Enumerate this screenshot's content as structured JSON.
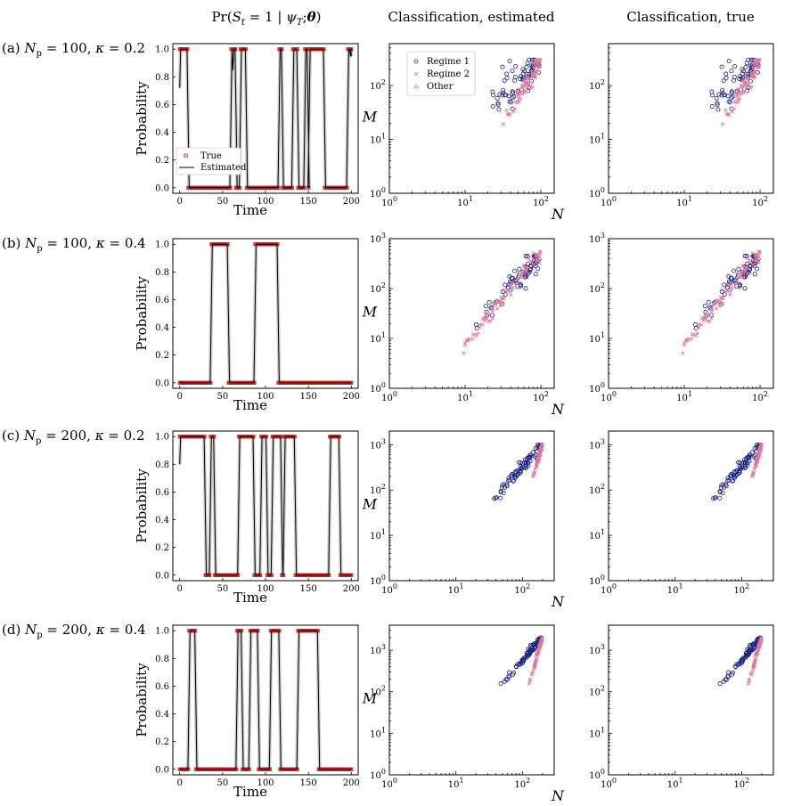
{
  "column_titles": {
    "prob": "Pr(S_t = 1 | ψ_T; θ)",
    "est": "Classification, estimated",
    "true": "Classification, true"
  },
  "row_labels": [
    "(a) N_p = 100, κ = 0.2",
    "(b) N_p = 100, κ = 0.4",
    "(c) N_p = 200, κ = 0.2",
    "(d) N_p = 200, κ = 0.4"
  ],
  "colors": {
    "regime1": "#1a237e",
    "regime2": "#e0789b",
    "other": "#9e9e9e",
    "true_marker": "#c62828",
    "estimated_line": "#000000",
    "band": "#cfcfcf"
  },
  "chart_data": [
    {
      "panel": "a-probability",
      "type": "line",
      "row": 0,
      "xlabel": "Time",
      "ylabel": "Probability",
      "xlim": [
        -8,
        208
      ],
      "ylim": [
        -0.04,
        1.04
      ],
      "xticks": [
        "0",
        "50",
        "100",
        "150",
        "200"
      ],
      "yticks": [
        "0.0",
        "0.2",
        "0.4",
        "0.6",
        "0.8",
        "1.0"
      ],
      "legend": [
        "True",
        "Estimated"
      ],
      "series": [
        {
          "name": "True",
          "intervals": [
            [
              0,
              9
            ],
            [
              60,
              65
            ],
            [
              71,
              77
            ],
            [
              116,
              119
            ],
            [
              132,
              137
            ],
            [
              146,
              149
            ],
            [
              151,
              168
            ],
            [
              196,
              200
            ]
          ],
          "outliers": [
            {
              "x": 53,
              "y": 0
            },
            {
              "x": 66,
              "y": 0
            }
          ]
        },
        {
          "name": "Estimated",
          "intervals": [
            [
              0,
              9
            ],
            [
              60,
              65
            ],
            [
              71,
              77
            ],
            [
              116,
              119
            ],
            [
              132,
              137
            ],
            [
              146,
              149
            ],
            [
              151,
              168
            ],
            [
              196,
              200
            ]
          ],
          "start": 0.72,
          "dips": [
            {
              "x": 62,
              "y": 0.85
            },
            {
              "x": 199,
              "y": 0.95
            }
          ]
        }
      ]
    },
    {
      "panel": "a-estimated",
      "type": "scatter",
      "row": 0,
      "xlabel": "N",
      "ylabel": "M",
      "log": true,
      "xlim": [
        1,
        150
      ],
      "ylim": [
        1,
        600
      ],
      "xticks": [
        "10^0",
        "10^1",
        "10^2"
      ],
      "yticks": [
        "10^0",
        "10^1",
        "10^2"
      ],
      "legend": [
        "Regime 1",
        "Regime 2",
        "Other"
      ],
      "series": [
        {
          "name": "Regime 1",
          "x_range": [
            20,
            95
          ],
          "y_range": [
            13,
            300
          ],
          "slope": 1.35,
          "scatter": 0.18,
          "count": 70
        },
        {
          "name": "Regime 2",
          "x_range": [
            30,
            100
          ],
          "y_range": [
            14,
            300
          ],
          "slope": 2.3,
          "scatter": 0.08,
          "count": 70
        }
      ]
    },
    {
      "panel": "a-true",
      "type": "scatter",
      "row": 0,
      "xlabel": "",
      "ylabel": "",
      "log": true,
      "xlim": [
        1,
        150
      ],
      "ylim": [
        1,
        600
      ],
      "xticks": [
        "10^0",
        "10^1",
        "10^2"
      ],
      "yticks": [
        "10^0",
        "10^1",
        "10^2"
      ],
      "series": [
        {
          "name": "Regime 1",
          "x_range": [
            20,
            95
          ],
          "y_range": [
            13,
            300
          ],
          "slope": 1.35,
          "scatter": 0.18,
          "count": 70
        },
        {
          "name": "Regime 2",
          "x_range": [
            30,
            100
          ],
          "y_range": [
            14,
            300
          ],
          "slope": 2.3,
          "scatter": 0.08,
          "count": 70
        }
      ]
    },
    {
      "panel": "b-probability",
      "type": "line",
      "row": 1,
      "xlabel": "Time",
      "ylabel": "Probability",
      "xlim": [
        -8,
        208
      ],
      "ylim": [
        -0.04,
        1.04
      ],
      "xticks": [
        "0",
        "50",
        "100",
        "150",
        "200"
      ],
      "yticks": [
        "0.0",
        "0.2",
        "0.4",
        "0.6",
        "0.8",
        "1.0"
      ],
      "series": [
        {
          "name": "True",
          "intervals": [
            [
              37,
              56
            ],
            [
              88,
              114
            ]
          ],
          "outliers": []
        },
        {
          "name": "Estimated",
          "intervals": [
            [
              37,
              56
            ],
            [
              88,
              114
            ]
          ],
          "start": 0.0,
          "dips": []
        }
      ]
    },
    {
      "panel": "b-estimated",
      "type": "scatter",
      "row": 1,
      "xlabel": "N",
      "ylabel": "M",
      "log": true,
      "xlim": [
        1,
        150
      ],
      "ylim": [
        1,
        1000
      ],
      "xticks": [
        "10^0",
        "10^1",
        "10^2"
      ],
      "yticks": [
        "10^0",
        "10^1",
        "10^2",
        "10^3"
      ],
      "series": [
        {
          "name": "Regime 1",
          "x_range": [
            13,
            95
          ],
          "y_range": [
            14,
            450
          ],
          "slope": 1.6,
          "scatter": 0.15,
          "count": 70
        },
        {
          "name": "Regime 2",
          "x_range": [
            8,
            100
          ],
          "y_range": [
            4,
            550
          ],
          "slope": 1.9,
          "scatter": 0.07,
          "count": 80
        }
      ]
    },
    {
      "panel": "b-true",
      "type": "scatter",
      "row": 1,
      "xlabel": "",
      "ylabel": "",
      "log": true,
      "xlim": [
        1,
        150
      ],
      "ylim": [
        1,
        1000
      ],
      "xticks": [
        "10^0",
        "10^1",
        "10^2"
      ],
      "yticks": [
        "10^0",
        "10^1",
        "10^2",
        "10^3"
      ],
      "series": [
        {
          "name": "Regime 1",
          "x_range": [
            13,
            95
          ],
          "y_range": [
            14,
            450
          ],
          "slope": 1.6,
          "scatter": 0.15,
          "count": 70
        },
        {
          "name": "Regime 2",
          "x_range": [
            8,
            100
          ],
          "y_range": [
            4,
            550
          ],
          "slope": 1.9,
          "scatter": 0.07,
          "count": 80
        }
      ]
    },
    {
      "panel": "c-probability",
      "type": "line",
      "row": 2,
      "xlabel": "Time",
      "ylabel": "Probability",
      "xlim": [
        -8,
        208
      ],
      "ylim": [
        -0.04,
        1.04
      ],
      "xticks": [
        "0",
        "50",
        "100",
        "150",
        "200"
      ],
      "yticks": [
        "0.0",
        "0.2",
        "0.4",
        "0.6",
        "0.8",
        "1.0"
      ],
      "series": [
        {
          "name": "True",
          "intervals": [
            [
              0,
              29
            ],
            [
              36,
              40
            ],
            [
              69,
              86
            ],
            [
              95,
              101
            ],
            [
              108,
              118
            ],
            [
              122,
              134
            ],
            [
              175,
              186
            ]
          ],
          "outliers": []
        },
        {
          "name": "Estimated",
          "intervals": [
            [
              0,
              29
            ],
            [
              36,
              40
            ],
            [
              69,
              86
            ],
            [
              95,
              101
            ],
            [
              108,
              118
            ],
            [
              122,
              134
            ],
            [
              175,
              186
            ]
          ],
          "start": 0.8,
          "dips": [
            {
              "x": 120,
              "y": 0.46
            }
          ]
        }
      ]
    },
    {
      "panel": "c-estimated",
      "type": "scatter",
      "row": 2,
      "xlabel": "N",
      "ylabel": "M",
      "log": true,
      "xlim": [
        1,
        300
      ],
      "ylim": [
        1,
        2000
      ],
      "xticks": [
        "10^0",
        "10^1",
        "10^2"
      ],
      "yticks": [
        "10^0",
        "10^1",
        "10^2",
        "10^3"
      ],
      "series": [
        {
          "name": "Regime 1",
          "x_range": [
            25,
            195
          ],
          "y_range": [
            30,
            1000
          ],
          "slope": 1.7,
          "scatter": 0.07,
          "count": 80
        },
        {
          "name": "Regime 2",
          "x_range": [
            140,
            200
          ],
          "y_range": [
            150,
            1000
          ],
          "slope": 5.0,
          "scatter": 0.04,
          "count": 60
        }
      ]
    },
    {
      "panel": "c-true",
      "type": "scatter",
      "row": 2,
      "xlabel": "",
      "ylabel": "",
      "log": true,
      "xlim": [
        1,
        300
      ],
      "ylim": [
        1,
        2000
      ],
      "xticks": [
        "10^0",
        "10^1",
        "10^2"
      ],
      "yticks": [
        "10^0",
        "10^1",
        "10^2",
        "10^3"
      ],
      "series": [
        {
          "name": "Regime 1",
          "x_range": [
            25,
            195
          ],
          "y_range": [
            30,
            1000
          ],
          "slope": 1.7,
          "scatter": 0.07,
          "count": 80
        },
        {
          "name": "Regime 2",
          "x_range": [
            140,
            200
          ],
          "y_range": [
            150,
            1000
          ],
          "slope": 5.0,
          "scatter": 0.04,
          "count": 60
        }
      ]
    },
    {
      "panel": "d-probability",
      "type": "line",
      "row": 3,
      "xlabel": "Time",
      "ylabel": "Probability",
      "xlim": [
        -8,
        208
      ],
      "ylim": [
        -0.04,
        1.04
      ],
      "xticks": [
        "0",
        "50",
        "100",
        "150",
        "200"
      ],
      "yticks": [
        "0.0",
        "0.2",
        "0.4",
        "0.6",
        "0.8",
        "1.0"
      ],
      "series": [
        {
          "name": "True",
          "intervals": [
            [
              11,
              18
            ],
            [
              67,
              72
            ],
            [
              82,
              91
            ],
            [
              106,
              116
            ],
            [
              138,
              161
            ]
          ],
          "outliers": []
        },
        {
          "name": "Estimated",
          "intervals": [
            [
              11,
              18
            ],
            [
              67,
              72
            ],
            [
              82,
              91
            ],
            [
              106,
              116
            ],
            [
              138,
              161
            ]
          ],
          "start": 0.0,
          "dips": []
        }
      ]
    },
    {
      "panel": "d-estimated",
      "type": "scatter",
      "row": 3,
      "xlabel": "N",
      "ylabel": "M",
      "log": true,
      "xlim": [
        1,
        300
      ],
      "ylim": [
        1,
        4000
      ],
      "xticks": [
        "10^0",
        "10^1",
        "10^2"
      ],
      "yticks": [
        "10^0",
        "10^1",
        "10^2",
        "10^3"
      ],
      "series": [
        {
          "name": "Regime 1",
          "x_range": [
            45,
            195
          ],
          "y_range": [
            110,
            2000
          ],
          "slope": 1.9,
          "scatter": 0.05,
          "count": 80
        },
        {
          "name": "Regime 2",
          "x_range": [
            120,
            200
          ],
          "y_range": [
            60,
            2000
          ],
          "slope": 5.5,
          "scatter": 0.04,
          "count": 60
        }
      ]
    },
    {
      "panel": "d-true",
      "type": "scatter",
      "row": 3,
      "xlabel": "",
      "ylabel": "",
      "log": true,
      "xlim": [
        1,
        300
      ],
      "ylim": [
        1,
        4000
      ],
      "xticks": [
        "10^0",
        "10^1",
        "10^2"
      ],
      "yticks": [
        "10^0",
        "10^1",
        "10^2",
        "10^3"
      ],
      "series": [
        {
          "name": "Regime 1",
          "x_range": [
            45,
            195
          ],
          "y_range": [
            110,
            2000
          ],
          "slope": 1.9,
          "scatter": 0.05,
          "count": 80
        },
        {
          "name": "Regime 2",
          "x_range": [
            120,
            200
          ],
          "y_range": [
            60,
            2000
          ],
          "slope": 5.5,
          "scatter": 0.04,
          "count": 60
        }
      ]
    }
  ]
}
